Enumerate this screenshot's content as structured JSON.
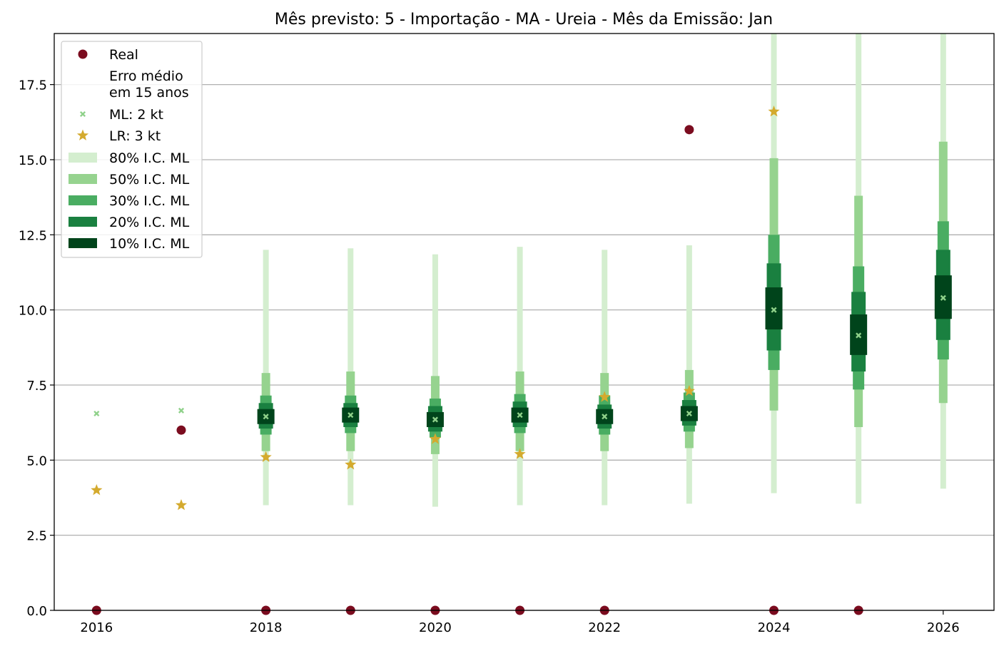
{
  "chart_data": {
    "type": "scatter",
    "title": "Mês previsto: 5 - Importação - MA - Ureia - Mês da Emissão: Jan",
    "xlabel": "",
    "ylabel": "",
    "xlim": [
      2015.5,
      2026.6
    ],
    "ylim": [
      0,
      19.2
    ],
    "x_ticks": [
      2016,
      2018,
      2020,
      2022,
      2024,
      2026
    ],
    "y_ticks": [
      0.0,
      2.5,
      5.0,
      7.5,
      10.0,
      12.5,
      15.0,
      17.5
    ],
    "x_tick_labels": [
      "2016",
      "2018",
      "2020",
      "2022",
      "2024",
      "2026"
    ],
    "y_tick_labels": [
      "0.0",
      "2.5",
      "5.0",
      "7.5",
      "10.0",
      "12.5",
      "15.0",
      "17.5"
    ],
    "grid": "horizontal",
    "legend_position": "top-left",
    "colors": {
      "real": "#7b0c1f",
      "ml": "#8fd18a",
      "lr": "#d4aa2e",
      "ci80": "#d4eecf",
      "ci50": "#96d38f",
      "ci30": "#4aad62",
      "ci20": "#1a8040",
      "ci10": "#00441b"
    },
    "legend": [
      {
        "key": "real",
        "label": "Real"
      },
      {
        "key": "erro",
        "label": "Erro médio",
        "label2": "em 15 anos"
      },
      {
        "key": "ml",
        "label": "ML: 2 kt"
      },
      {
        "key": "lr",
        "label": "LR: 3 kt"
      },
      {
        "key": "ci80",
        "label": "80% I.C. ML"
      },
      {
        "key": "ci50",
        "label": "50% I.C. ML"
      },
      {
        "key": "ci30",
        "label": "30% I.C. ML"
      },
      {
        "key": "ci20",
        "label": "20% I.C. ML"
      },
      {
        "key": "ci10",
        "label": "10% I.C. ML"
      }
    ],
    "series": [
      {
        "name": "Real",
        "points": [
          [
            2016,
            0
          ],
          [
            2017,
            6.0
          ],
          [
            2018,
            0
          ],
          [
            2019,
            0
          ],
          [
            2020,
            0
          ],
          [
            2021,
            0
          ],
          [
            2022,
            0
          ],
          [
            2023,
            16.0
          ],
          [
            2024,
            0
          ],
          [
            2025,
            0
          ]
        ]
      },
      {
        "name": "ML: 2 kt",
        "points": [
          [
            2016,
            6.55
          ],
          [
            2017,
            6.65
          ],
          [
            2018,
            6.45
          ],
          [
            2019,
            6.5
          ],
          [
            2020,
            6.35
          ],
          [
            2021,
            6.5
          ],
          [
            2022,
            6.45
          ],
          [
            2023,
            6.55
          ],
          [
            2024,
            10.0
          ],
          [
            2025,
            9.15
          ],
          [
            2026,
            10.4
          ]
        ]
      },
      {
        "name": "LR: 3 kt",
        "points": [
          [
            2016,
            4.0
          ],
          [
            2017,
            3.5
          ],
          [
            2018,
            5.1
          ],
          [
            2019,
            4.85
          ],
          [
            2020,
            5.7
          ],
          [
            2021,
            5.2
          ],
          [
            2022,
            7.1
          ],
          [
            2023,
            7.3
          ],
          [
            2024,
            16.6
          ]
        ]
      }
    ],
    "intervals": [
      {
        "x": 2018,
        "ci80": [
          3.5,
          12.0
        ],
        "ci50": [
          5.3,
          7.9
        ],
        "ci30": [
          5.85,
          7.15
        ],
        "ci20": [
          6.05,
          6.9
        ],
        "ci10": [
          6.2,
          6.7
        ]
      },
      {
        "x": 2019,
        "ci80": [
          3.5,
          12.05
        ],
        "ci50": [
          5.3,
          7.95
        ],
        "ci30": [
          5.9,
          7.15
        ],
        "ci20": [
          6.1,
          6.9
        ],
        "ci10": [
          6.25,
          6.75
        ]
      },
      {
        "x": 2020,
        "ci80": [
          3.45,
          11.85
        ],
        "ci50": [
          5.2,
          7.8
        ],
        "ci30": [
          5.75,
          7.05
        ],
        "ci20": [
          5.95,
          6.8
        ],
        "ci10": [
          6.1,
          6.6
        ]
      },
      {
        "x": 2021,
        "ci80": [
          3.5,
          12.1
        ],
        "ci50": [
          5.3,
          7.95
        ],
        "ci30": [
          5.9,
          7.2
        ],
        "ci20": [
          6.1,
          6.95
        ],
        "ci10": [
          6.25,
          6.75
        ]
      },
      {
        "x": 2022,
        "ci80": [
          3.5,
          12.0
        ],
        "ci50": [
          5.3,
          7.9
        ],
        "ci30": [
          5.85,
          7.15
        ],
        "ci20": [
          6.05,
          6.85
        ],
        "ci10": [
          6.2,
          6.7
        ]
      },
      {
        "x": 2023,
        "ci80": [
          3.55,
          12.15
        ],
        "ci50": [
          5.4,
          8.0
        ],
        "ci30": [
          5.95,
          7.25
        ],
        "ci20": [
          6.15,
          7.0
        ],
        "ci10": [
          6.3,
          6.8
        ]
      },
      {
        "x": 2024,
        "ci80": [
          3.9,
          19.2
        ],
        "ci50": [
          6.65,
          15.05
        ],
        "ci30": [
          8.0,
          12.5
        ],
        "ci20": [
          8.65,
          11.55
        ],
        "ci10": [
          9.35,
          10.75
        ]
      },
      {
        "x": 2025,
        "ci80": [
          3.55,
          19.2
        ],
        "ci50": [
          6.1,
          13.8
        ],
        "ci30": [
          7.35,
          11.45
        ],
        "ci20": [
          7.95,
          10.6
        ],
        "ci10": [
          8.5,
          9.85
        ]
      },
      {
        "x": 2026,
        "ci80": [
          4.05,
          19.2
        ],
        "ci50": [
          6.9,
          15.6
        ],
        "ci30": [
          8.35,
          12.95
        ],
        "ci20": [
          9.0,
          12.0
        ],
        "ci10": [
          9.7,
          11.15
        ]
      }
    ]
  }
}
